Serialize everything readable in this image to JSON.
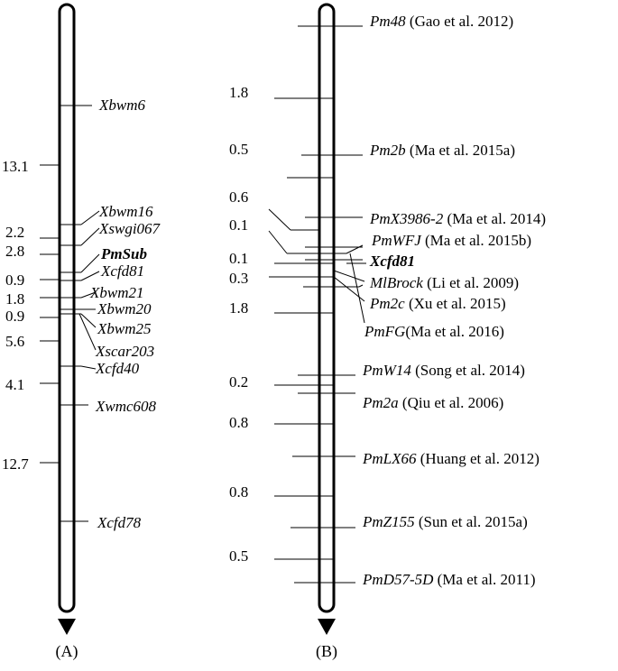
{
  "colors": {
    "ink": "#000000",
    "background": "#ffffff"
  },
  "map_a": {
    "caption": "(A)",
    "distances": [
      "13.1",
      "2.2",
      "2.8",
      "0.9",
      "1.8",
      "0.9",
      "5.6",
      "4.1",
      "12.7"
    ],
    "markers": [
      {
        "text": "Xbwm6",
        "italic": true,
        "bold": false
      },
      {
        "text": "Xbwm16",
        "italic": true,
        "bold": false
      },
      {
        "text": "Xswgi067",
        "italic": true,
        "bold": false
      },
      {
        "text": "PmSub",
        "italic": true,
        "bold": true
      },
      {
        "text": "Xcfd81",
        "italic": true,
        "bold": false
      },
      {
        "text": "Xbwm21",
        "italic": true,
        "bold": false
      },
      {
        "text": "Xbwm20",
        "italic": true,
        "bold": false
      },
      {
        "text": "Xbwm25",
        "italic": true,
        "bold": false
      },
      {
        "text": "Xscar203",
        "italic": true,
        "bold": false
      },
      {
        "text": "Xcfd40",
        "italic": true,
        "bold": false
      },
      {
        "text": "Xwmc608",
        "italic": true,
        "bold": false
      },
      {
        "text": "Xcfd78",
        "italic": true,
        "bold": false
      }
    ]
  },
  "map_b": {
    "caption": "(B)",
    "distances": [
      "1.8",
      "0.5",
      "0.6",
      "0.1",
      "0.1",
      "0.3",
      "1.8",
      "0.2",
      "0.8",
      "0.8",
      "0.5"
    ],
    "markers": [
      {
        "gene": "Pm48",
        "ref": " (Gao et al. 2012)",
        "bold": false
      },
      {
        "gene": "Pm2b",
        "ref": " (Ma et al. 2015a)",
        "bold": false
      },
      {
        "gene": "PmX3986-2",
        "ref": " (Ma et al. 2014)",
        "bold": false
      },
      {
        "gene": "PmWFJ",
        "ref": " (Ma et al. 2015b)",
        "bold": false
      },
      {
        "gene": "Xcfd81",
        "ref": "",
        "bold": true
      },
      {
        "gene": "MlBrock",
        "ref": " (Li et al. 2009)",
        "bold": false
      },
      {
        "gene": "Pm2c",
        "ref": " (Xu et al. 2015)",
        "bold": false
      },
      {
        "gene": "PmFG",
        "ref": "(Ma et al. 2016)",
        "bold": false
      },
      {
        "gene": "PmW14",
        "ref": " (Song et al. 2014)",
        "bold": false
      },
      {
        "gene": "Pm2a",
        "ref": " (Qiu et al. 2006)",
        "bold": false
      },
      {
        "gene": "PmLX66",
        "ref": " (Huang et al. 2012)",
        "bold": false
      },
      {
        "gene": "PmZ155",
        "ref": " (Sun et al. 2015a)",
        "bold": false
      },
      {
        "gene": "PmD57-5D",
        "ref": " (Ma et al. 2011)",
        "bold": false
      }
    ]
  }
}
